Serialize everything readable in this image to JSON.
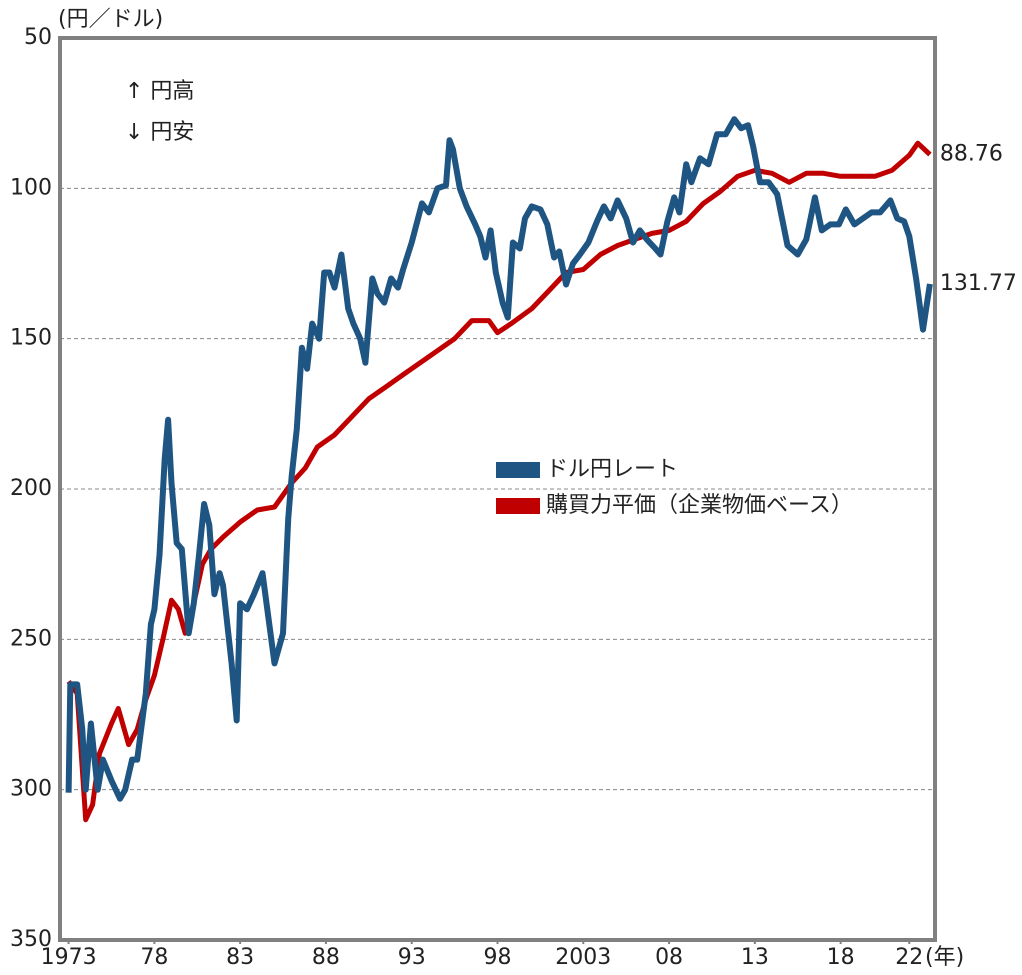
{
  "chart_data": {
    "type": "line",
    "y_label": "(円／ドル)",
    "x_label": "(年)",
    "annotations": [
      "↑ 円高",
      "↓ 円安"
    ],
    "xlim": [
      1972.5,
      2023.5
    ],
    "xticks": [
      {
        "value": 1973,
        "label": "1973"
      },
      {
        "value": 1978,
        "label": "78"
      },
      {
        "value": 1983,
        "label": "83"
      },
      {
        "value": 1988,
        "label": "88"
      },
      {
        "value": 1993,
        "label": "93"
      },
      {
        "value": 1998,
        "label": "98"
      },
      {
        "value": 2003,
        "label": "2003"
      },
      {
        "value": 2008,
        "label": "08"
      },
      {
        "value": 2013,
        "label": "13"
      },
      {
        "value": 2018,
        "label": "18"
      },
      {
        "value": 2022,
        "label": "22"
      }
    ],
    "ylim": [
      50,
      350
    ],
    "y_reversed": true,
    "yticks": [
      50,
      100,
      150,
      200,
      250,
      300,
      350
    ],
    "grid": true,
    "series": [
      {
        "name": "ドル円レート",
        "color": "#1f5582",
        "x": [
          1973.0,
          1973.1,
          1973.5,
          1973.8,
          1974.0,
          1974.3,
          1974.7,
          1975.0,
          1975.5,
          1976.0,
          1976.3,
          1976.7,
          1977.0,
          1977.5,
          1977.8,
          1978.0,
          1978.3,
          1978.6,
          1978.8,
          1979.0,
          1979.3,
          1979.6,
          1980.0,
          1980.3,
          1980.6,
          1980.9,
          1981.2,
          1981.5,
          1981.8,
          1982.0,
          1982.5,
          1982.8,
          1983.0,
          1983.4,
          1983.8,
          1984.3,
          1984.7,
          1985.0,
          1985.5,
          1985.8,
          1986.0,
          1986.3,
          1986.6,
          1986.9,
          1987.2,
          1987.6,
          1987.9,
          1988.2,
          1988.5,
          1988.9,
          1989.3,
          1989.6,
          1990.0,
          1990.3,
          1990.7,
          1991.0,
          1991.4,
          1991.8,
          1992.2,
          1992.5,
          1993.0,
          1993.6,
          1994.0,
          1994.5,
          1995.0,
          1995.2,
          1995.4,
          1995.8,
          1996.2,
          1996.7,
          1997.0,
          1997.3,
          1997.6,
          1997.9,
          1998.3,
          1998.6,
          1998.9,
          1999.3,
          1999.6,
          2000.0,
          2000.5,
          2000.9,
          2001.3,
          2001.6,
          2002.0,
          2002.4,
          2002.8,
          2003.3,
          2003.8,
          2004.2,
          2004.6,
          2005.0,
          2005.5,
          2005.9,
          2006.3,
          2006.7,
          2007.2,
          2007.5,
          2007.9,
          2008.3,
          2008.6,
          2009.0,
          2009.3,
          2009.8,
          2010.3,
          2010.8,
          2011.3,
          2011.8,
          2012.2,
          2012.6,
          2012.9,
          2013.3,
          2013.8,
          2014.3,
          2014.9,
          2015.5,
          2016.0,
          2016.5,
          2016.9,
          2017.4,
          2017.9,
          2018.3,
          2018.8,
          2019.3,
          2019.8,
          2020.3,
          2020.9,
          2021.3,
          2021.7,
          2022.0,
          2022.4,
          2022.8,
          2023.2
        ],
        "values": [
          301,
          265,
          265,
          280,
          300,
          278,
          300,
          290,
          297,
          303,
          300,
          290,
          290,
          268,
          245,
          240,
          222,
          190,
          177,
          198,
          218,
          220,
          248,
          238,
          222,
          205,
          212,
          235,
          228,
          232,
          258,
          277,
          238,
          240,
          235,
          228,
          245,
          258,
          248,
          210,
          196,
          180,
          153,
          160,
          145,
          150,
          128,
          128,
          133,
          122,
          140,
          145,
          150,
          158,
          130,
          135,
          138,
          130,
          133,
          127,
          118,
          105,
          108,
          100,
          99,
          84,
          87,
          100,
          106,
          112,
          116,
          123,
          114,
          128,
          138,
          143,
          118,
          120,
          110,
          106,
          107,
          112,
          123,
          121,
          132,
          125,
          122,
          118,
          111,
          106,
          110,
          104,
          110,
          118,
          114,
          117,
          120,
          122,
          111,
          103,
          108,
          92,
          98,
          90,
          92,
          82,
          82,
          77,
          80,
          79,
          86,
          98,
          98,
          102,
          119,
          122,
          117,
          103,
          114,
          112,
          112,
          107,
          112,
          110,
          108,
          108,
          104,
          110,
          111,
          116,
          130,
          147,
          131.77
        ]
      },
      {
        "name": "購買力平価（企業物価ベース）",
        "color": "#c00000",
        "x": [
          1973.0,
          1973.5,
          1974.0,
          1974.4,
          1974.8,
          1975.5,
          1975.9,
          1976.5,
          1977.0,
          1977.5,
          1978.0,
          1978.5,
          1979.0,
          1979.4,
          1979.8,
          1980.3,
          1980.8,
          1981.3,
          1982.0,
          1983.0,
          1984.0,
          1985.0,
          1986.0,
          1986.8,
          1987.5,
          1988.5,
          1989.5,
          1990.5,
          1991.5,
          1992.5,
          1993.5,
          1994.5,
          1995.5,
          1996.5,
          1997.5,
          1998.0,
          1998.8,
          2000.0,
          2001.0,
          2002.0,
          2003.0,
          2004.0,
          2005.0,
          2006.0,
          2007.0,
          2008.0,
          2009.0,
          2010.0,
          2011.0,
          2012.0,
          2013.0,
          2014.0,
          2015.0,
          2016.0,
          2017.0,
          2018.0,
          2019.0,
          2020.0,
          2021.0,
          2022.0,
          2022.5,
          2023.2
        ],
        "values": [
          264,
          268,
          310,
          305,
          288,
          278,
          273,
          285,
          280,
          270,
          262,
          250,
          237,
          240,
          248,
          238,
          225,
          220,
          216,
          211,
          207,
          206,
          198,
          193,
          186,
          182,
          176,
          170,
          166,
          162,
          158,
          154,
          150,
          144,
          144,
          148,
          145,
          140,
          134,
          128,
          127,
          122,
          119,
          117,
          115,
          114,
          111,
          105,
          101,
          96,
          94,
          95,
          98,
          95,
          95,
          96,
          96,
          96,
          94,
          89,
          85,
          88.76
        ]
      }
    ]
  }
}
